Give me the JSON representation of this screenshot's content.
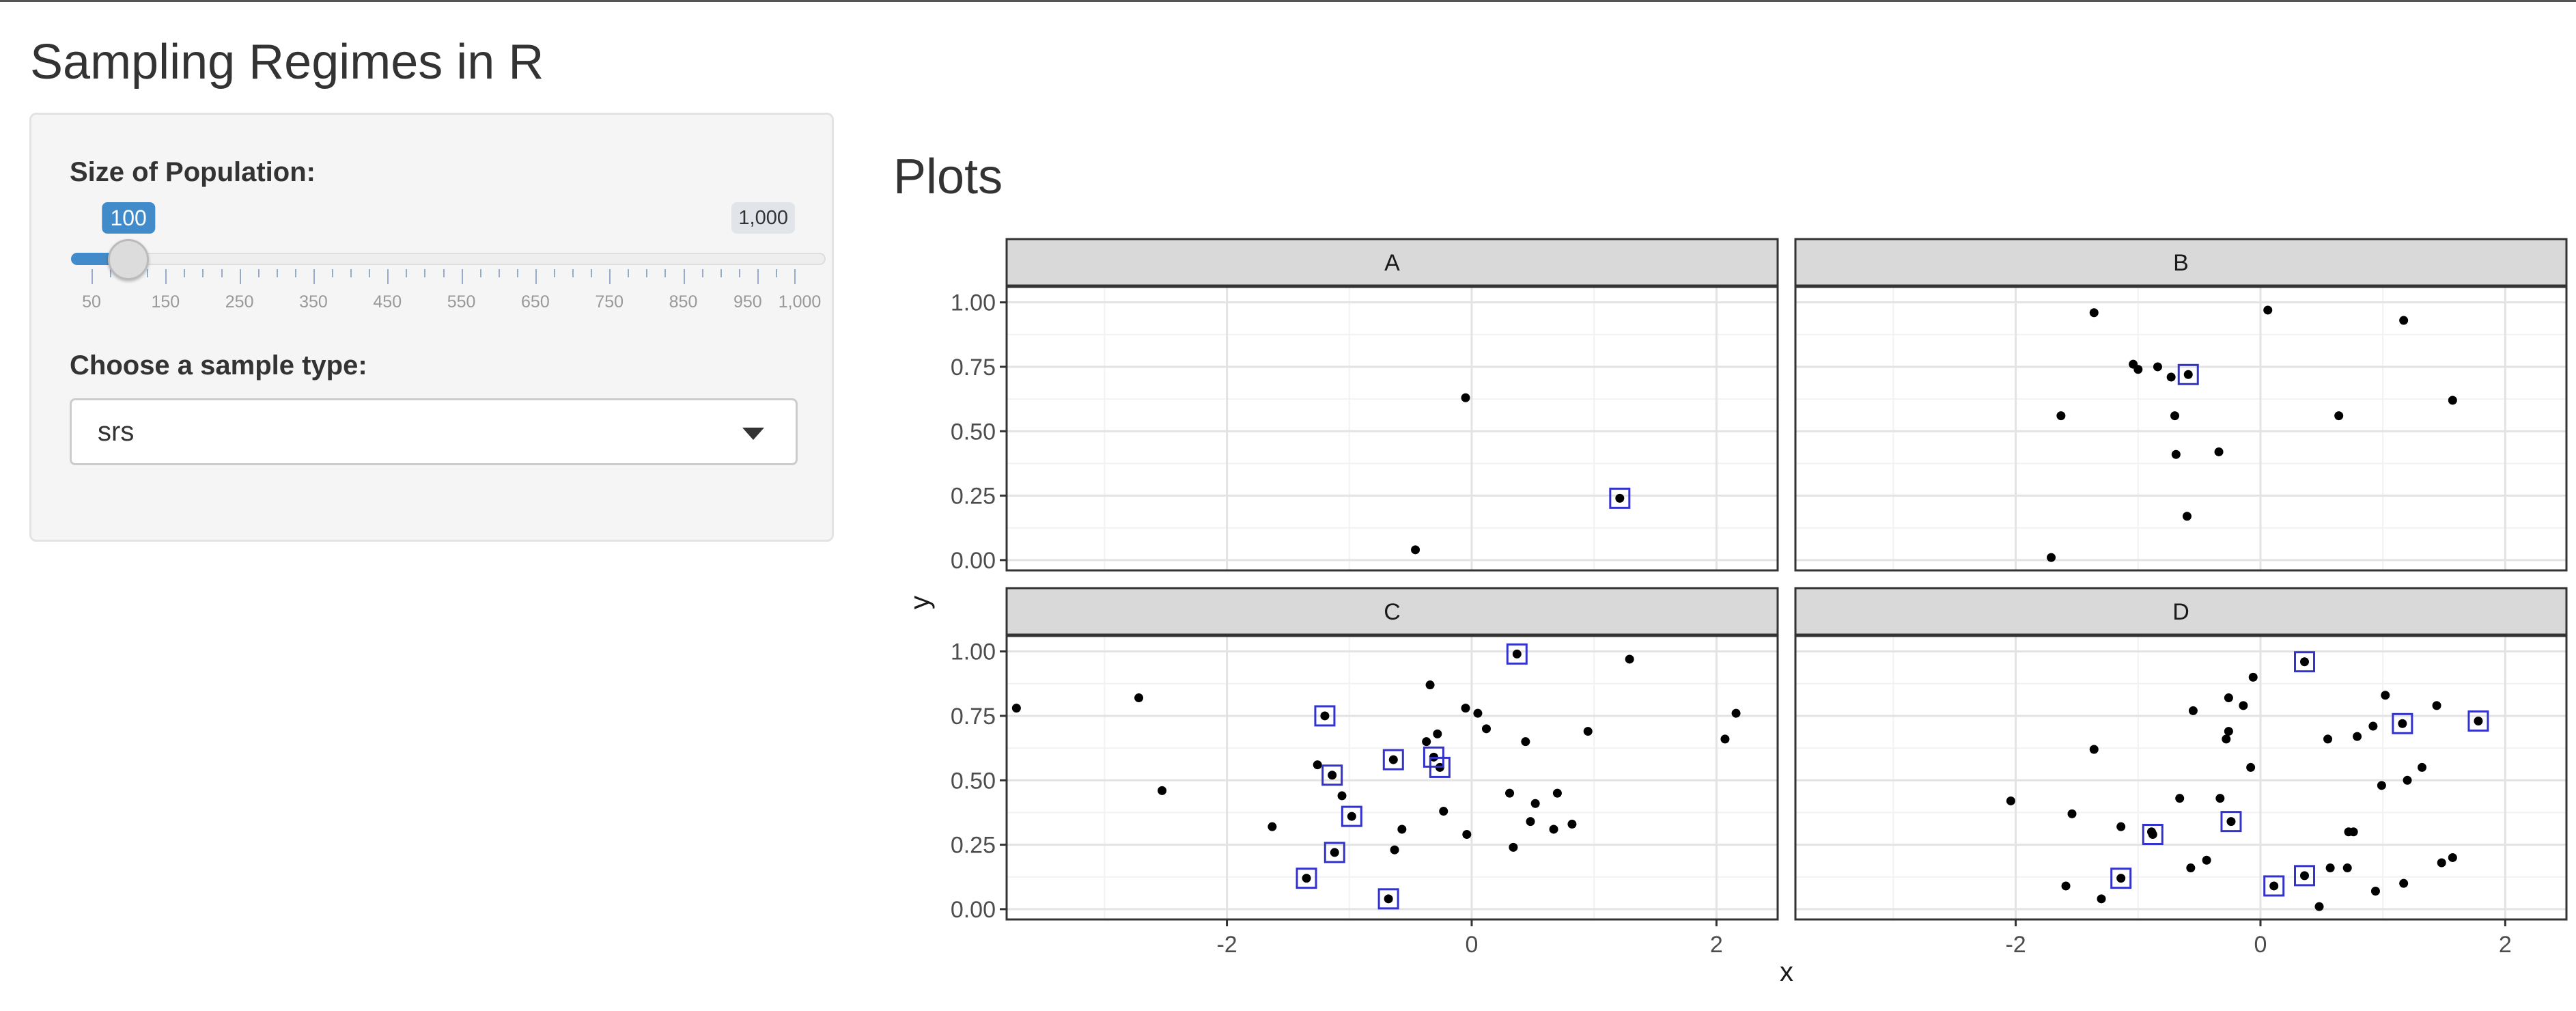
{
  "app": {
    "title": "Sampling Regimes in R"
  },
  "sidebar": {
    "population_label": "Size of Population:",
    "slider": {
      "min": 50,
      "max": 1000,
      "value": 100,
      "value_label": "100",
      "max_label": "1,000",
      "grid_labels": [
        "50",
        "150",
        "250",
        "350",
        "450",
        "550",
        "650",
        "750",
        "850",
        "950",
        "1,000"
      ],
      "accent_color": "#428bca"
    },
    "sample_type_label": "Choose a sample type:",
    "sample_type": {
      "selected": "srs",
      "icon": "chevron-down-icon"
    }
  },
  "main": {
    "heading": "Plots"
  },
  "chart_data": {
    "type": "scatter",
    "facets": [
      "A",
      "B",
      "C",
      "D"
    ],
    "xlabel": "x",
    "ylabel": "y",
    "xlim": [
      -3.8,
      2.5
    ],
    "ylim": [
      -0.04,
      1.06
    ],
    "xticks": [
      "-2",
      "0",
      "2"
    ],
    "yticks": [
      "0.00",
      "0.25",
      "0.50",
      "0.75",
      "1.00"
    ],
    "point_color": "#000000",
    "sample_box_color": "#3333cc",
    "grid": true,
    "panels": [
      {
        "name": "A",
        "points": [
          [
            -0.05,
            0.63
          ],
          [
            -0.46,
            0.04
          ],
          [
            1.21,
            0.24
          ]
        ],
        "sampled": [
          [
            1.21,
            0.24
          ]
        ]
      },
      {
        "name": "B",
        "points": [
          [
            -1.36,
            0.96
          ],
          [
            0.06,
            0.97
          ],
          [
            1.17,
            0.93
          ],
          [
            -1.04,
            0.76
          ],
          [
            -1.0,
            0.74
          ],
          [
            -0.84,
            0.75
          ],
          [
            -0.73,
            0.71
          ],
          [
            -0.59,
            0.72
          ],
          [
            -1.63,
            0.56
          ],
          [
            -0.7,
            0.56
          ],
          [
            0.64,
            0.56
          ],
          [
            1.57,
            0.62
          ],
          [
            -0.69,
            0.41
          ],
          [
            -0.34,
            0.42
          ],
          [
            -0.6,
            0.17
          ],
          [
            -1.71,
            0.01
          ]
        ],
        "sampled": [
          [
            -0.59,
            0.72
          ]
        ]
      },
      {
        "name": "C",
        "points": [
          [
            -3.72,
            0.78
          ],
          [
            -2.72,
            0.82
          ],
          [
            -2.53,
            0.46
          ],
          [
            -1.63,
            0.32
          ],
          [
            -1.26,
            0.56
          ],
          [
            -1.2,
            0.75
          ],
          [
            -1.14,
            0.52
          ],
          [
            -1.12,
            0.22
          ],
          [
            -1.06,
            0.44
          ],
          [
            -0.98,
            0.36
          ],
          [
            -1.35,
            0.12
          ],
          [
            -0.68,
            0.04
          ],
          [
            -0.64,
            0.58
          ],
          [
            -0.63,
            0.23
          ],
          [
            -0.57,
            0.31
          ],
          [
            -0.37,
            0.65
          ],
          [
            -0.34,
            0.87
          ],
          [
            -0.31,
            0.59
          ],
          [
            -0.28,
            0.68
          ],
          [
            -0.26,
            0.55
          ],
          [
            -0.23,
            0.38
          ],
          [
            -0.05,
            0.78
          ],
          [
            -0.04,
            0.29
          ],
          [
            0.05,
            0.76
          ],
          [
            0.12,
            0.7
          ],
          [
            0.37,
            0.99
          ],
          [
            0.31,
            0.45
          ],
          [
            0.34,
            0.24
          ],
          [
            0.44,
            0.65
          ],
          [
            0.48,
            0.34
          ],
          [
            0.52,
            0.41
          ],
          [
            0.67,
            0.31
          ],
          [
            0.7,
            0.45
          ],
          [
            0.82,
            0.33
          ],
          [
            0.95,
            0.69
          ],
          [
            1.29,
            0.97
          ],
          [
            2.07,
            0.66
          ],
          [
            2.16,
            0.76
          ]
        ],
        "sampled": [
          [
            -1.2,
            0.75
          ],
          [
            -1.14,
            0.52
          ],
          [
            -1.12,
            0.22
          ],
          [
            -0.98,
            0.36
          ],
          [
            -1.35,
            0.12
          ],
          [
            -0.68,
            0.04
          ],
          [
            -0.64,
            0.58
          ],
          [
            -0.31,
            0.59
          ],
          [
            -0.26,
            0.55
          ],
          [
            0.37,
            0.99
          ]
        ]
      },
      {
        "name": "D",
        "points": [
          [
            -2.04,
            0.42
          ],
          [
            -1.59,
            0.09
          ],
          [
            -1.54,
            0.37
          ],
          [
            -1.36,
            0.62
          ],
          [
            -1.3,
            0.04
          ],
          [
            -1.14,
            0.32
          ],
          [
            -1.14,
            0.12
          ],
          [
            -0.89,
            0.3
          ],
          [
            -0.88,
            0.29
          ],
          [
            -0.66,
            0.43
          ],
          [
            -0.57,
            0.16
          ],
          [
            -0.55,
            0.77
          ],
          [
            -0.44,
            0.19
          ],
          [
            -0.33,
            0.43
          ],
          [
            -0.28,
            0.66
          ],
          [
            -0.26,
            0.69
          ],
          [
            -0.26,
            0.82
          ],
          [
            -0.24,
            0.34
          ],
          [
            -0.14,
            0.79
          ],
          [
            -0.08,
            0.55
          ],
          [
            -0.06,
            0.9
          ],
          [
            0.36,
            0.96
          ],
          [
            0.11,
            0.09
          ],
          [
            0.36,
            0.13
          ],
          [
            0.48,
            0.01
          ],
          [
            0.55,
            0.66
          ],
          [
            0.57,
            0.16
          ],
          [
            0.71,
            0.16
          ],
          [
            0.72,
            0.3
          ],
          [
            0.76,
            0.3
          ],
          [
            0.79,
            0.67
          ],
          [
            0.92,
            0.71
          ],
          [
            0.94,
            0.07
          ],
          [
            0.99,
            0.48
          ],
          [
            1.02,
            0.83
          ],
          [
            1.16,
            0.72
          ],
          [
            1.17,
            0.1
          ],
          [
            1.2,
            0.5
          ],
          [
            1.32,
            0.55
          ],
          [
            1.44,
            0.79
          ],
          [
            1.48,
            0.18
          ],
          [
            1.57,
            0.2
          ],
          [
            1.78,
            0.73
          ]
        ],
        "sampled": [
          [
            -1.14,
            0.12
          ],
          [
            -0.88,
            0.29
          ],
          [
            -0.24,
            0.34
          ],
          [
            0.11,
            0.09
          ],
          [
            0.36,
            0.13
          ],
          [
            0.36,
            0.96
          ],
          [
            1.16,
            0.72
          ],
          [
            1.78,
            0.73
          ]
        ]
      }
    ]
  }
}
